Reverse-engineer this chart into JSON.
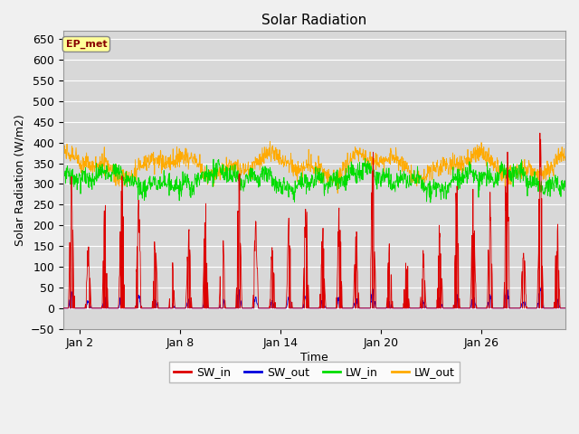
{
  "title": "Solar Radiation",
  "xlabel": "Time",
  "ylabel": "Solar Radiation (W/m2)",
  "ylim": [
    -50,
    670
  ],
  "yticks": [
    -50,
    0,
    50,
    100,
    150,
    200,
    250,
    300,
    350,
    400,
    450,
    500,
    550,
    600,
    650
  ],
  "fig_bg_color": "#f0f0f0",
  "plot_bg_color": "#d8d8d8",
  "sw_in_color": "#dd0000",
  "sw_out_color": "#0000dd",
  "lw_in_color": "#00dd00",
  "lw_out_color": "#ffaa00",
  "ep_met_box_color": "#ffff99",
  "ep_met_text_color": "#880000",
  "n_days": 30,
  "dt_per_hour": 2,
  "seed": 12345
}
